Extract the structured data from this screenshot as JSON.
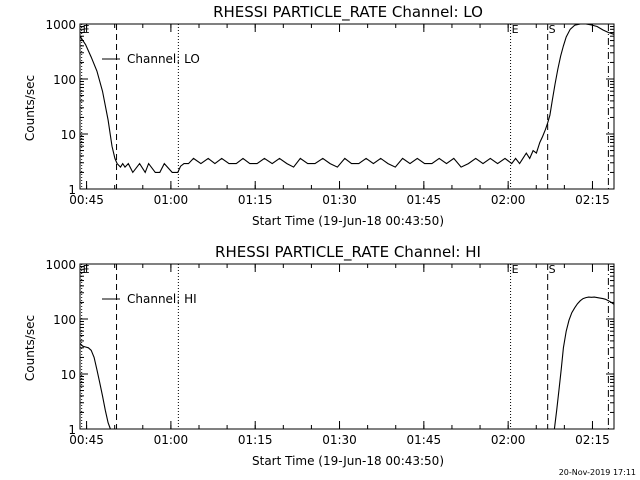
{
  "footer": {
    "timestamp": "20-Nov-2019 17:11"
  },
  "chart_data": [
    {
      "type": "line",
      "title": "RHESSI PARTICLE_RATE Channel: LO",
      "xlabel": "Start Time (19-Jun-18 00:43:50)",
      "ylabel": "Counts/sec",
      "x_unit": "minutes after 00:43:50",
      "xlim": [
        0,
        95
      ],
      "ylim": [
        1,
        1000
      ],
      "yscale": "log",
      "x_ticks": [
        {
          "v": 1.17,
          "label": "00:45"
        },
        {
          "v": 16.17,
          "label": "01:00"
        },
        {
          "v": 31.17,
          "label": "01:15"
        },
        {
          "v": 46.17,
          "label": "01:30"
        },
        {
          "v": 61.17,
          "label": "01:45"
        },
        {
          "v": 76.17,
          "label": "02:00"
        },
        {
          "v": 91.17,
          "label": "02:15"
        }
      ],
      "y_ticks": [
        {
          "v": 1,
          "label": "1"
        },
        {
          "v": 10,
          "label": "10"
        },
        {
          "v": 100,
          "label": "100"
        },
        {
          "v": 1000,
          "label": "1000"
        }
      ],
      "legend": {
        "label": "Channel: LO",
        "position": "top-left"
      },
      "grid": false,
      "markers": [
        {
          "x": 0.3,
          "style": "dotted",
          "label": "E"
        },
        {
          "x": 6.5,
          "style": "dashed",
          "label": ""
        },
        {
          "x": 17.5,
          "style": "dotted",
          "label": ""
        },
        {
          "x": 76.6,
          "style": "dotted",
          "label": "E"
        },
        {
          "x": 83.2,
          "style": "dashed",
          "label": "S"
        },
        {
          "x": 94.0,
          "style": "dashdot",
          "label": ""
        }
      ],
      "series": [
        {
          "x": [
            0,
            1,
            2,
            3,
            4,
            5,
            5.7,
            6.2,
            6.6,
            7.2,
            7.6,
            8.0,
            8.6,
            9.4,
            10.6,
            11.6,
            12.2,
            13.4,
            14.2,
            15.0,
            16.4,
            17.0,
            17.4,
            17.9,
            18.5,
            19.3,
            20.2,
            21.5,
            22.8,
            24.0,
            25.2,
            26.5,
            27.8,
            29.0,
            30.2,
            31.5,
            32.8,
            34.2,
            35.5,
            36.8,
            38.0,
            39.2,
            40.5,
            41.8,
            43.2,
            44.5,
            45.8,
            47.1,
            48.3,
            49.6,
            50.9,
            52.2,
            53.5,
            54.8,
            56.1,
            57.4,
            58.7,
            60.0,
            61.3,
            62.6,
            63.9,
            65.2,
            66.5,
            67.8,
            69.1,
            70.4,
            71.7,
            73.0,
            74.3,
            75.6,
            76.8,
            77.5,
            78.2,
            78.8,
            79.4,
            80.0,
            80.6,
            81.2,
            81.8,
            82.3,
            82.8,
            83.2,
            83.6,
            84.0,
            84.5,
            85.0,
            85.5,
            86.0,
            86.5,
            87.2,
            88.0,
            89.0,
            90.0,
            91.0,
            92.0,
            93.0,
            94.0,
            95.0
          ],
          "values": [
            600,
            420,
            250,
            140,
            60,
            18,
            6,
            3.6,
            2.9,
            2.5,
            2.9,
            2.5,
            2.9,
            2.0,
            2.9,
            2.0,
            2.9,
            2.0,
            2.0,
            2.9,
            2.0,
            2.0,
            2.0,
            2.6,
            2.9,
            2.9,
            3.6,
            2.9,
            3.6,
            2.9,
            3.6,
            2.9,
            2.9,
            3.6,
            2.9,
            2.9,
            3.6,
            2.9,
            3.6,
            2.9,
            2.5,
            3.6,
            2.9,
            2.9,
            3.6,
            2.9,
            2.5,
            3.6,
            2.9,
            2.9,
            3.6,
            2.9,
            3.6,
            2.9,
            2.5,
            3.6,
            2.9,
            3.6,
            2.9,
            2.9,
            3.6,
            2.9,
            3.6,
            2.5,
            2.9,
            3.6,
            2.9,
            3.6,
            2.9,
            3.6,
            2.9,
            3.6,
            2.9,
            3.6,
            4.5,
            3.6,
            5.0,
            4.5,
            7,
            9,
            12,
            16,
            22,
            40,
            80,
            150,
            260,
            400,
            580,
            800,
            950,
            1000,
            1000,
            960,
            900,
            780,
            700,
            650
          ]
        }
      ]
    },
    {
      "type": "line",
      "title": "RHESSI PARTICLE_RATE Channel: HI",
      "xlabel": "Start Time (19-Jun-18 00:43:50)",
      "ylabel": "Counts/sec",
      "x_unit": "minutes after 00:43:50",
      "xlim": [
        0,
        95
      ],
      "ylim": [
        1,
        1000
      ],
      "yscale": "log",
      "x_ticks": [
        {
          "v": 1.17,
          "label": "00:45"
        },
        {
          "v": 16.17,
          "label": "01:00"
        },
        {
          "v": 31.17,
          "label": "01:15"
        },
        {
          "v": 46.17,
          "label": "01:30"
        },
        {
          "v": 61.17,
          "label": "01:45"
        },
        {
          "v": 76.17,
          "label": "02:00"
        },
        {
          "v": 91.17,
          "label": "02:15"
        }
      ],
      "y_ticks": [
        {
          "v": 1,
          "label": "1"
        },
        {
          "v": 10,
          "label": "10"
        },
        {
          "v": 100,
          "label": "100"
        },
        {
          "v": 1000,
          "label": "1000"
        }
      ],
      "legend": {
        "label": "Channel: HI",
        "position": "top-left"
      },
      "grid": false,
      "markers": [
        {
          "x": 0.3,
          "style": "dotted",
          "label": "E"
        },
        {
          "x": 6.5,
          "style": "dashed",
          "label": ""
        },
        {
          "x": 17.5,
          "style": "dotted",
          "label": ""
        },
        {
          "x": 76.6,
          "style": "dotted",
          "label": "E"
        },
        {
          "x": 83.2,
          "style": "dashed",
          "label": "S"
        },
        {
          "x": 94.0,
          "style": "dashdot",
          "label": ""
        }
      ],
      "series": [
        {
          "x": [
            0,
            0.5,
            1.0,
            1.5,
            2.0,
            2.5,
            3.0,
            3.5,
            4.0,
            4.5,
            5.0,
            5.4
          ],
          "values": [
            36,
            32,
            31,
            30,
            27,
            20,
            12,
            7,
            4,
            2.2,
            1.3,
            1.0
          ]
        },
        {
          "x": [
            84.4,
            84.8,
            85.2,
            85.6,
            86.0,
            86.5,
            87.0,
            87.5,
            88.0,
            88.5,
            89.0,
            89.5,
            90.0,
            90.5,
            91.0,
            91.5,
            92.0,
            92.5,
            93.0,
            93.5,
            94.0,
            94.5,
            95.0
          ],
          "values": [
            1.0,
            2.2,
            5,
            12,
            30,
            60,
            95,
            130,
            160,
            190,
            215,
            235,
            245,
            250,
            248,
            250,
            245,
            240,
            235,
            228,
            215,
            200,
            185
          ]
        }
      ]
    }
  ]
}
